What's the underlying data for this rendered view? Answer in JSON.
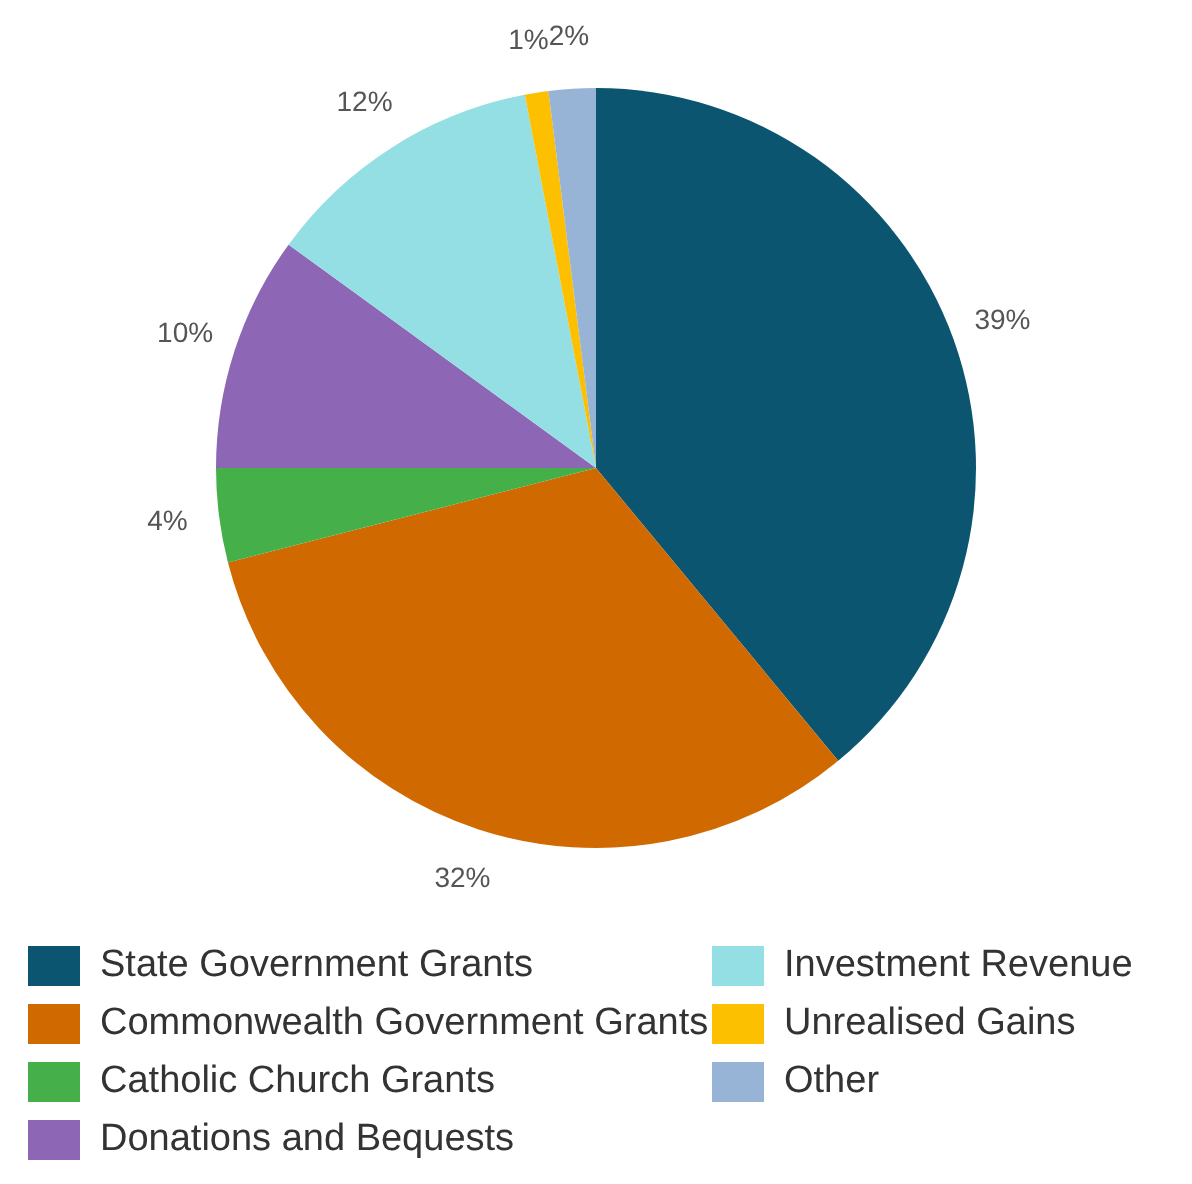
{
  "chart_data": {
    "type": "pie",
    "categories": [
      "State Government Grants",
      "Commonwealth Government Grants",
      "Catholic Church Grants",
      "Donations and Bequests",
      "Investment Revenue",
      "Unrealised Gains",
      "Other"
    ],
    "values": [
      39,
      32,
      4,
      10,
      12,
      1,
      2
    ],
    "value_labels": [
      "39%",
      "32%",
      "4%",
      "10%",
      "12%",
      "1%",
      "2%"
    ],
    "colors": [
      "#0b5570",
      "#d06a00",
      "#45b04a",
      "#8d67b5",
      "#93dfe3",
      "#fcc000",
      "#97b3d6"
    ],
    "legend": "bottom"
  }
}
